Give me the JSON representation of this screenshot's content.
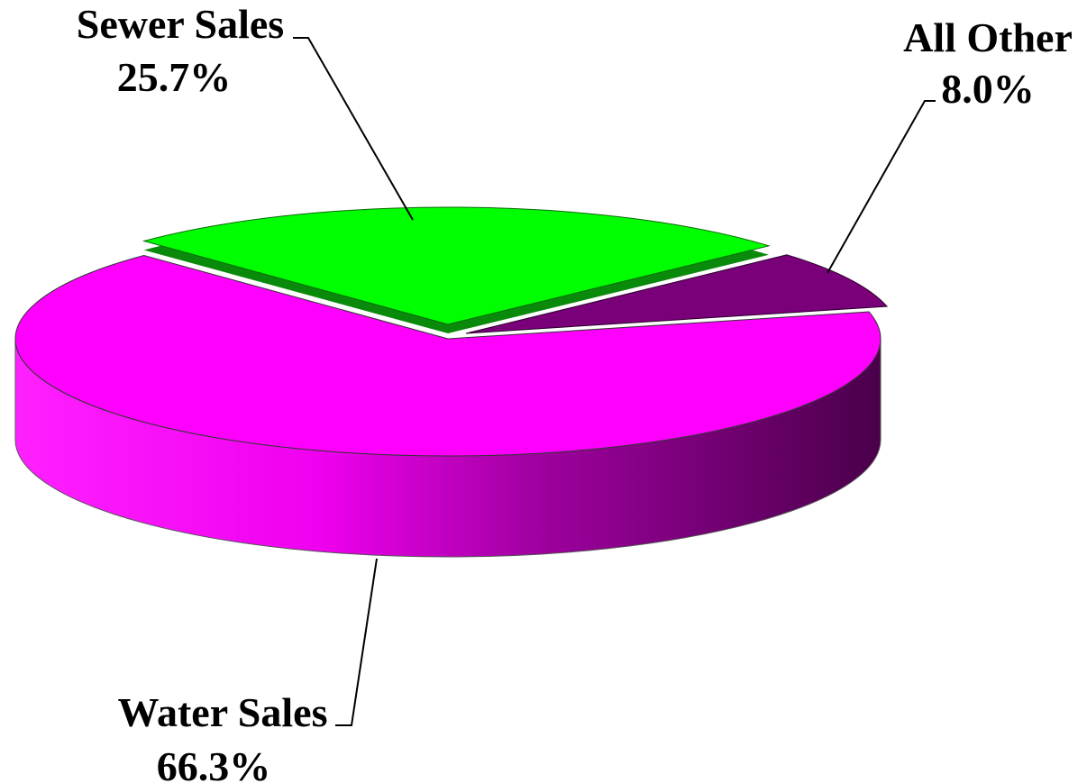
{
  "chart_data": {
    "type": "pie",
    "title": "",
    "three_d": true,
    "legend": "none",
    "slices": [
      {
        "category": "Water Sales",
        "value": 66.3,
        "label": "66.3%",
        "color": "#ff00ff"
      },
      {
        "category": "Sewer Sales",
        "value": 25.7,
        "label": "25.7%",
        "color": "#00ff00"
      },
      {
        "category": "All Other",
        "value": 8.0,
        "label": "8.0%",
        "color": "#7a007a"
      }
    ]
  }
}
